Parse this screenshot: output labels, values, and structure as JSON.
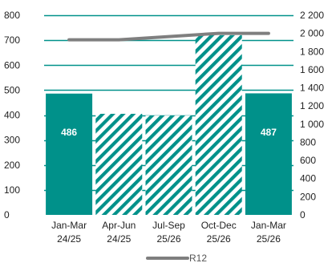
{
  "chart_data": {
    "type": "bar",
    "categories": [
      [
        "Jan-Mar",
        "24/25"
      ],
      [
        "Apr-Jun",
        "24/25"
      ],
      [
        "Jul-Sep",
        "25/26"
      ],
      [
        "Oct-Dec",
        "25/26"
      ],
      [
        "Jan-Mar",
        "25/26"
      ]
    ],
    "series": [
      {
        "type": "bar",
        "axis": "left",
        "values": [
          486,
          405,
          398,
          720,
          487
        ],
        "styles": [
          "solid",
          "hatched",
          "hatched",
          "hatched",
          "solid"
        ],
        "data_labels": [
          "486",
          null,
          null,
          null,
          "487"
        ]
      },
      {
        "name": "R12",
        "type": "line",
        "axis": "right",
        "values": [
          1930,
          1930,
          null,
          2000,
          2000
        ]
      }
    ],
    "y_left": {
      "min": 0,
      "max": 800,
      "ticks": [
        "0",
        "100",
        "200",
        "300",
        "400",
        "500",
        "600",
        "700",
        "800"
      ]
    },
    "y_right": {
      "min": 0,
      "max": 2200,
      "ticks": [
        "0",
        "200",
        "400",
        "600",
        "800",
        "1 000",
        "1 200",
        "1 400",
        "1 600",
        "1 800",
        "2 000",
        "2 200"
      ]
    },
    "grid": true,
    "legend": {
      "position": "bottom",
      "entries": [
        "R12"
      ]
    },
    "colors": {
      "bar": "#00918a",
      "line": "#7f7f7f",
      "grid": "#00918a",
      "hatch_bg": "#ffffff"
    }
  }
}
